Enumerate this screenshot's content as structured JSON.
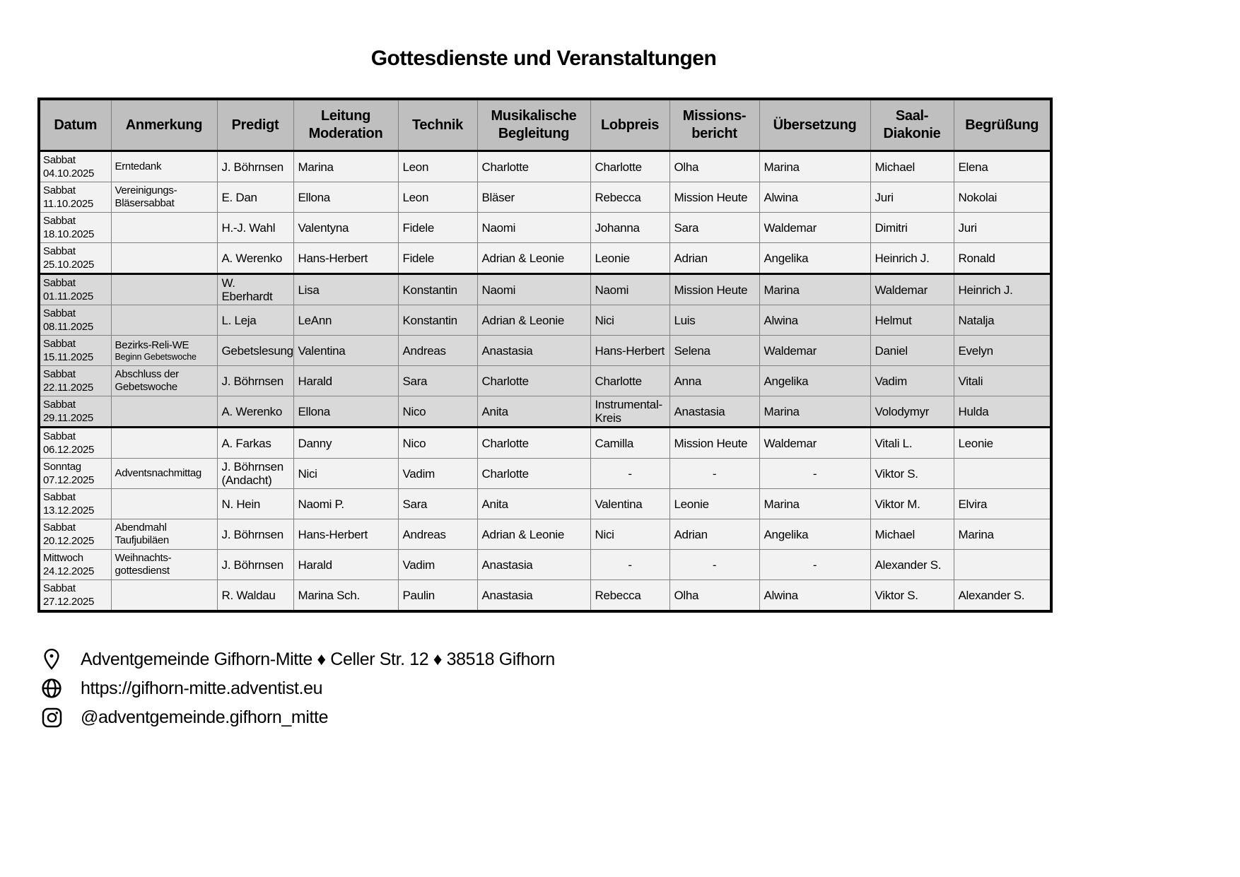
{
  "title": "Gottesdienste und Veranstaltungen",
  "table": {
    "headers": [
      "Datum",
      "Anmerkung",
      "Predigt",
      "Leitung\nModeration",
      "Technik",
      "Musikalische\nBegleitung",
      "Lobpreis",
      "Missions-\nbericht",
      "Übersetzung",
      "Saal-\nDiakonie",
      "Begrüßung"
    ],
    "rows": [
      {
        "day": "Sabbat",
        "date": "04.10.2025",
        "note": "Erntedank",
        "note_small": "",
        "shade": "light",
        "group_end": false,
        "cells": [
          "J. Böhrnsen",
          "Marina",
          "Leon",
          "Charlotte",
          "Charlotte",
          "Olha",
          "Marina",
          "Michael",
          "Elena"
        ]
      },
      {
        "day": "Sabbat",
        "date": "11.10.2025",
        "note": "Vereinigungs-\nBläsersabbat",
        "note_small": "",
        "shade": "light",
        "group_end": false,
        "cells": [
          "E. Dan",
          "Ellona",
          "Leon",
          "Bläser",
          "Rebecca",
          "Mission Heute",
          "Alwina",
          "Juri",
          "Nokolai"
        ]
      },
      {
        "day": "Sabbat",
        "date": "18.10.2025",
        "note": "",
        "note_small": "",
        "shade": "light",
        "group_end": false,
        "cells": [
          "H.-J. Wahl",
          "Valentyna",
          "Fidele",
          "Naomi",
          "Johanna",
          "Sara",
          "Waldemar",
          "Dimitri",
          "Juri"
        ]
      },
      {
        "day": "Sabbat",
        "date": "25.10.2025",
        "note": "",
        "note_small": "",
        "shade": "light",
        "group_end": true,
        "cells": [
          "A. Werenko",
          "Hans-Herbert",
          "Fidele",
          "Adrian & Leonie",
          "Leonie",
          "Adrian",
          "Angelika",
          "Heinrich J.",
          "Ronald"
        ]
      },
      {
        "day": "Sabbat",
        "date": "01.11.2025",
        "note": "",
        "note_small": "",
        "shade": "dark",
        "group_end": false,
        "cells": [
          "W. Eberhardt",
          "Lisa",
          "Konstantin",
          "Naomi",
          "Naomi",
          "Mission Heute",
          "Marina",
          "Waldemar",
          "Heinrich J."
        ]
      },
      {
        "day": "Sabbat",
        "date": "08.11.2025",
        "note": "",
        "note_small": "",
        "shade": "dark",
        "group_end": false,
        "cells": [
          "L. Leja",
          "LeAnn",
          "Konstantin",
          "Adrian & Leonie",
          "Nici",
          "Luis",
          "Alwina",
          "Helmut",
          "Natalja"
        ]
      },
      {
        "day": "Sabbat",
        "date": "15.11.2025",
        "note": "Bezirks-Reli-WE",
        "note_small": "Beginn Gebetswoche",
        "shade": "dark",
        "group_end": false,
        "cells": [
          "Gebetslesung",
          "Valentina",
          "Andreas",
          "Anastasia",
          "Hans-Herbert",
          "Selena",
          "Waldemar",
          "Daniel",
          "Evelyn"
        ]
      },
      {
        "day": "Sabbat",
        "date": "22.11.2025",
        "note": "Abschluss der\nGebetswoche",
        "note_small": "",
        "shade": "dark",
        "group_end": false,
        "cells": [
          "J. Böhrnsen",
          "Harald",
          "Sara",
          "Charlotte",
          "Charlotte",
          "Anna",
          "Angelika",
          "Vadim",
          "Vitali"
        ]
      },
      {
        "day": "Sabbat",
        "date": "29.11.2025",
        "note": "",
        "note_small": "",
        "shade": "dark",
        "group_end": true,
        "cells": [
          "A. Werenko",
          "Ellona",
          "Nico",
          "Anita",
          "Instrumental-\nKreis",
          "Anastasia",
          "Marina",
          "Volodymyr",
          "Hulda"
        ]
      },
      {
        "day": "Sabbat",
        "date": "06.12.2025",
        "note": "",
        "note_small": "",
        "shade": "light",
        "group_end": false,
        "cells": [
          "A. Farkas",
          "Danny",
          "Nico",
          "Charlotte",
          "Camilla",
          "Mission Heute",
          "Waldemar",
          "Vitali L.",
          "Leonie"
        ]
      },
      {
        "day": "Sonntag",
        "date": "07.12.2025",
        "note": "Adventsnachmittag",
        "note_small": "",
        "shade": "light",
        "group_end": false,
        "cells": [
          "J. Böhrnsen\n(Andacht)",
          "Nici",
          "Vadim",
          "Charlotte",
          "-",
          "-",
          "-",
          "Viktor S.",
          ""
        ]
      },
      {
        "day": "Sabbat",
        "date": "13.12.2025",
        "note": "",
        "note_small": "",
        "shade": "light",
        "group_end": false,
        "cells": [
          "N. Hein",
          "Naomi P.",
          "Sara",
          "Anita",
          "Valentina",
          "Leonie",
          "Marina",
          "Viktor M.",
          "Elvira"
        ]
      },
      {
        "day": "Sabbat",
        "date": "20.12.2025",
        "note": "Abendmahl\nTaufjubiläen",
        "note_small": "",
        "shade": "light",
        "group_end": false,
        "cells": [
          "J. Böhrnsen",
          "Hans-Herbert",
          "Andreas",
          "Adrian & Leonie",
          "Nici",
          "Adrian",
          "Angelika",
          "Michael",
          "Marina"
        ]
      },
      {
        "day": "Mittwoch",
        "date": "24.12.2025",
        "note": "Weihnachts-\ngottesdienst",
        "note_small": "",
        "shade": "light",
        "group_end": false,
        "cells": [
          "J. Böhrnsen",
          "Harald",
          "Vadim",
          "Anastasia",
          "-",
          "-",
          "-",
          "Alexander S.",
          ""
        ]
      },
      {
        "day": "Sabbat",
        "date": "27.12.2025",
        "note": "",
        "note_small": "",
        "shade": "light",
        "group_end": false,
        "cells": [
          "R. Waldau",
          "Marina Sch.",
          "Paulin",
          "Anastasia",
          "Rebecca",
          "Olha",
          "Alwina",
          "Viktor S.",
          "Alexander S."
        ]
      }
    ]
  },
  "footer": {
    "address": "Adventgemeinde Gifhorn-Mitte ♦ Celler Str. 12 ♦ 38518 Gifhorn",
    "website": "https://gifhorn-mitte.adventist.eu",
    "instagram": "@adventgemeinde.gifhorn_mitte"
  },
  "colors": {
    "header_bg": "#bfbfbf",
    "row_light": "#f2f2f2",
    "row_dark": "#d9d9d9",
    "grid_line": "#808080",
    "outer_border": "#000000"
  }
}
